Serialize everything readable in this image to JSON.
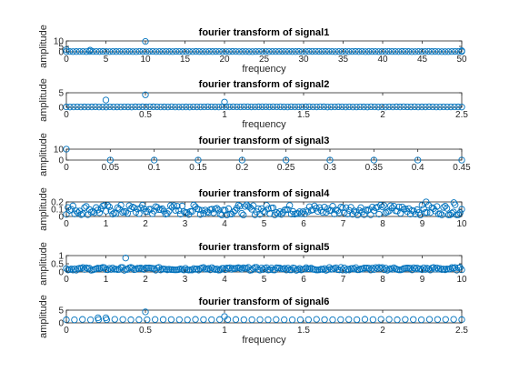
{
  "colors": {
    "marker": "#0072BD",
    "axis": "#262626",
    "background": "#ffffff"
  },
  "chart_data": [
    {
      "type": "scatter",
      "title": "fourier transform of signal1",
      "xlabel": "frequency",
      "ylabel": "amplitude",
      "xlim": [
        0,
        50
      ],
      "ylim": [
        0,
        10
      ],
      "xticks": [
        0,
        5,
        10,
        15,
        20,
        25,
        30,
        35,
        40,
        45,
        50
      ],
      "xticklabels": [
        "0",
        "5",
        "10",
        "15",
        "20",
        "25",
        "30",
        "35",
        "40",
        "45",
        "50"
      ],
      "yticks": [
        0,
        5,
        10
      ],
      "yticklabels": [
        "0",
        "5",
        "10"
      ],
      "series": [
        {
          "x": [
            0,
            3,
            10,
            50
          ],
          "y": [
            2,
            1.5,
            9.5,
            1.0
          ]
        },
        {
          "x_range": [
            0,
            50
          ],
          "count": 120,
          "baseline": 0.2,
          "spread": 0.2
        }
      ]
    },
    {
      "type": "scatter",
      "title": "fourier transform of signal2",
      "xlabel": "frequency",
      "ylabel": "amplitude",
      "xlim": [
        0,
        2.5
      ],
      "ylim": [
        0,
        5
      ],
      "xticks": [
        0,
        0.5,
        1,
        1.5,
        2,
        2.5
      ],
      "xticklabels": [
        "0",
        "0.5",
        "1",
        "1.5",
        "2",
        "2.5"
      ],
      "yticks": [
        0,
        5
      ],
      "yticklabels": [
        "0",
        "5"
      ],
      "series": [
        {
          "x": [
            0.25,
            0.5,
            1.0
          ],
          "y": [
            2.5,
            4.3,
            1.8
          ]
        },
        {
          "x_range": [
            0,
            2.5
          ],
          "count": 110,
          "baseline": 0.1,
          "spread": 0.1
        }
      ]
    },
    {
      "type": "scatter",
      "title": "fourier transform of signal3",
      "xlabel": "",
      "ylabel": "amplitude",
      "xlim": [
        0,
        0.45
      ],
      "ylim": [
        0,
        10
      ],
      "xticks": [
        0,
        0.05,
        0.1,
        0.15,
        0.2,
        0.25,
        0.3,
        0.35,
        0.4,
        0.45
      ],
      "xticklabels": [
        "0",
        "0.05",
        "0.1",
        "0.15",
        "0.2",
        "0.25",
        "0.3",
        "0.35",
        "0.4",
        "0.45"
      ],
      "yticks": [
        0,
        10
      ],
      "yticklabels": [
        "0",
        "10"
      ],
      "series": [
        {
          "x": [
            0,
            0.05,
            0.1,
            0.15,
            0.2,
            0.25,
            0.3,
            0.35,
            0.4,
            0.45
          ],
          "y": [
            10,
            0,
            0,
            0,
            0,
            0,
            0,
            0,
            0,
            0
          ]
        }
      ]
    },
    {
      "type": "scatter",
      "title": "fourier transform of signal4",
      "xlabel": "",
      "ylabel": "amplitude",
      "xlim": [
        0,
        10
      ],
      "ylim": [
        0,
        0.2
      ],
      "xticks": [
        0,
        1,
        2,
        3,
        4,
        5,
        6,
        7,
        8,
        9,
        10
      ],
      "xticklabels": [
        "0",
        "1",
        "2",
        "3",
        "4",
        "5",
        "6",
        "7",
        "8",
        "9",
        "10"
      ],
      "yticks": [
        0,
        0.1,
        0.2
      ],
      "yticklabels": [
        "0",
        "0.1",
        "0.2"
      ],
      "series": [
        {
          "x": [
            9.1,
            9.8
          ],
          "y": [
            0.2,
            0.19
          ]
        },
        {
          "x_range": [
            0,
            10
          ],
          "count": 240,
          "baseline": 0.02,
          "spread": 0.14
        }
      ]
    },
    {
      "type": "scatter",
      "title": "fourier transform of signal5",
      "xlabel": "",
      "ylabel": "amplitude",
      "xlim": [
        0,
        10
      ],
      "ylim": [
        0,
        1
      ],
      "xticks": [
        0,
        1,
        2,
        3,
        4,
        5,
        6,
        7,
        8,
        9,
        10
      ],
      "xticklabels": [
        "0",
        "1",
        "2",
        "3",
        "4",
        "5",
        "6",
        "7",
        "8",
        "9",
        "10"
      ],
      "yticks": [
        0,
        0.5,
        1
      ],
      "yticklabels": [
        "0",
        "0.5",
        "1"
      ],
      "series": [
        {
          "x": [
            1.5
          ],
          "y": [
            0.85
          ]
        },
        {
          "x_range": [
            0,
            10
          ],
          "count": 240,
          "baseline": 0.1,
          "spread": 0.18
        }
      ]
    },
    {
      "type": "scatter",
      "title": "fourier transform of signal6",
      "xlabel": "frequency",
      "ylabel": "amplitude",
      "xlim": [
        0,
        2.5
      ],
      "ylim": [
        0,
        5
      ],
      "xticks": [
        0,
        0.5,
        1,
        1.5,
        2,
        2.5
      ],
      "xticklabels": [
        "0",
        "0.5",
        "1",
        "1.5",
        "2",
        "2.5"
      ],
      "yticks": [
        0,
        5
      ],
      "yticklabels": [
        "0",
        "5"
      ],
      "series": [
        {
          "x": [
            0.2,
            0.25,
            0.5,
            1.0
          ],
          "y": [
            2.0,
            2.0,
            4.3,
            2.5
          ]
        },
        {
          "x_range": [
            0,
            2.5
          ],
          "count": 50,
          "baseline": 1.2,
          "spread": 0.2
        }
      ]
    }
  ]
}
